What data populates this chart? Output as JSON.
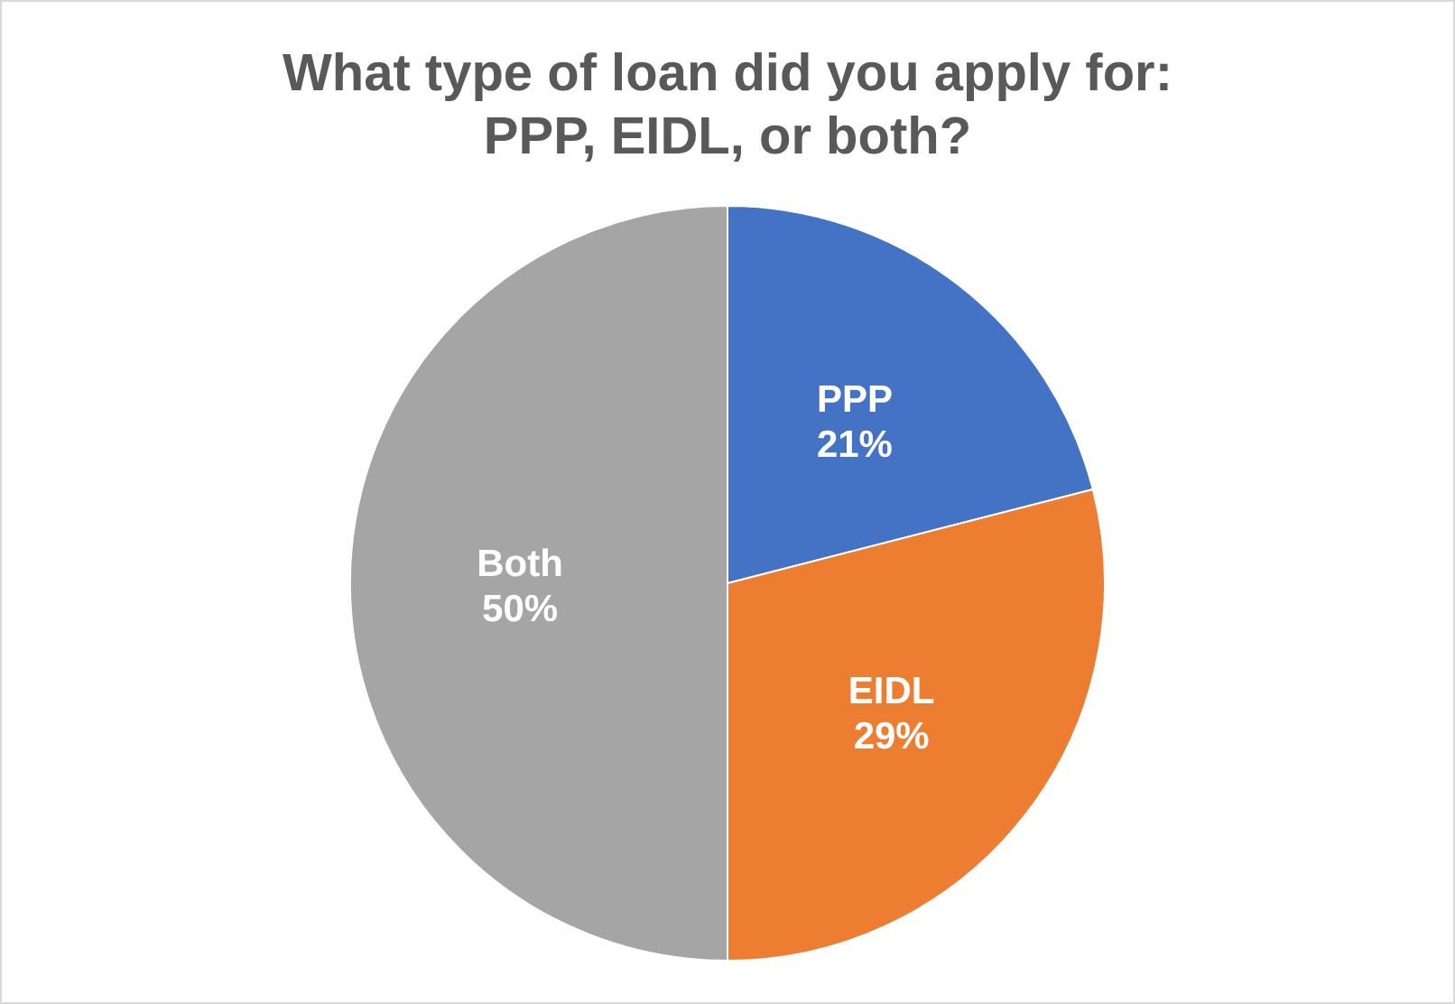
{
  "chart_data": {
    "type": "pie",
    "title": "What type of loan did you apply for: PPP, EIDL, or both?",
    "categories": [
      "PPP",
      "EIDL",
      "Both"
    ],
    "values": [
      21,
      29,
      50
    ],
    "value_labels": [
      "21%",
      "29%",
      "50%"
    ],
    "colors": [
      "#4472c4",
      "#ed7d31",
      "#a5a5a5"
    ]
  }
}
